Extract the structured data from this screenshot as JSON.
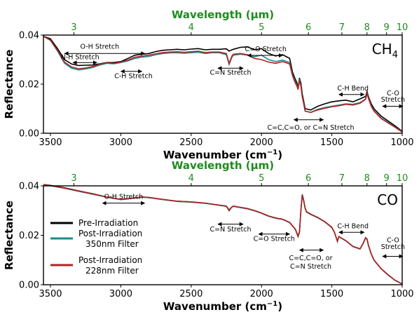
{
  "colors": {
    "pre": "#000000",
    "post350": "#1b8a8f",
    "post228": "#b22222",
    "top_axis": "#1e8c1e"
  },
  "legend": {
    "entries": [
      {
        "series": "pre",
        "lines": [
          "Pre-Irradiation"
        ]
      },
      {
        "series": "post350",
        "lines": [
          "Post-Irradiation",
          "350nm Filter"
        ]
      },
      {
        "series": "post228",
        "lines": [
          "Post-Irradiation",
          "228nm Filter"
        ]
      }
    ]
  },
  "chart_data": [
    {
      "type": "line",
      "panel_label": "CH",
      "panel_label_sub": "4",
      "xlabel": "Wavenumber (cm",
      "xlabel_sup": "−1",
      "xlabel_end": ")",
      "ylabel": "Reflectance",
      "top_label": "Wavelength (µm)",
      "xlim": [
        3550,
        1000
      ],
      "ylim": [
        0,
        0.04
      ],
      "x_ticks": [
        3500,
        3000,
        2500,
        2000,
        1500,
        1000
      ],
      "y_ticks": [
        0.0,
        0.02,
        0.04
      ],
      "y_tick_labels": [
        "0.00",
        "0.02",
        "0.04"
      ],
      "top_ticks": [
        3,
        4,
        5,
        6,
        7,
        8,
        9,
        10
      ],
      "grid": false,
      "series": [
        {
          "key": "pre",
          "x": [
            3550,
            3500,
            3450,
            3400,
            3350,
            3300,
            3250,
            3200,
            3150,
            3100,
            3050,
            3000,
            2950,
            2900,
            2850,
            2800,
            2750,
            2700,
            2650,
            2600,
            2550,
            2500,
            2450,
            2400,
            2350,
            2300,
            2250,
            2230,
            2210,
            2200,
            2150,
            2100,
            2050,
            2000,
            1950,
            1900,
            1850,
            1800,
            1780,
            1760,
            1750,
            1740,
            1730,
            1720,
            1710,
            1700,
            1690,
            1650,
            1600,
            1550,
            1500,
            1450,
            1400,
            1350,
            1300,
            1260,
            1250,
            1240,
            1220,
            1200,
            1150,
            1100,
            1050,
            1000
          ],
          "y": [
            0.0395,
            0.0385,
            0.0345,
            0.03,
            0.0282,
            0.0276,
            0.0277,
            0.0278,
            0.0283,
            0.0288,
            0.0288,
            0.0292,
            0.0305,
            0.0318,
            0.0322,
            0.0325,
            0.0333,
            0.0338,
            0.034,
            0.0342,
            0.034,
            0.0343,
            0.0345,
            0.034,
            0.0342,
            0.0342,
            0.0344,
            0.0335,
            0.034,
            0.0342,
            0.035,
            0.0352,
            0.034,
            0.0345,
            0.0325,
            0.0315,
            0.032,
            0.0305,
            0.025,
            0.022,
            0.0208,
            0.0185,
            0.0225,
            0.0205,
            0.016,
            0.013,
            0.01,
            0.0095,
            0.011,
            0.012,
            0.0128,
            0.0132,
            0.0135,
            0.0128,
            0.014,
            0.015,
            0.017,
            0.015,
            0.012,
            0.01,
            0.007,
            0.005,
            0.003,
            0.0008
          ]
        },
        {
          "key": "post350",
          "x": [
            3550,
            3500,
            3450,
            3400,
            3350,
            3300,
            3250,
            3200,
            3150,
            3100,
            3050,
            3000,
            2950,
            2900,
            2850,
            2800,
            2750,
            2700,
            2650,
            2600,
            2550,
            2500,
            2450,
            2400,
            2350,
            2300,
            2250,
            2230,
            2210,
            2200,
            2150,
            2100,
            2050,
            2000,
            1950,
            1900,
            1850,
            1800,
            1780,
            1760,
            1750,
            1740,
            1730,
            1720,
            1710,
            1700,
            1690,
            1650,
            1600,
            1550,
            1500,
            1450,
            1400,
            1350,
            1300,
            1260,
            1250,
            1240,
            1220,
            1200,
            1150,
            1100,
            1050,
            1000
          ],
          "y": [
            0.0395,
            0.0378,
            0.0335,
            0.0285,
            0.0265,
            0.0258,
            0.0262,
            0.0268,
            0.0278,
            0.0285,
            0.0283,
            0.0288,
            0.0295,
            0.0305,
            0.031,
            0.0313,
            0.032,
            0.0325,
            0.0327,
            0.0328,
            0.0326,
            0.0328,
            0.033,
            0.0325,
            0.0328,
            0.0328,
            0.032,
            0.028,
            0.031,
            0.0318,
            0.0322,
            0.0318,
            0.0312,
            0.0318,
            0.03,
            0.0292,
            0.0298,
            0.0288,
            0.024,
            0.021,
            0.0198,
            0.018,
            0.022,
            0.0195,
            0.015,
            0.0122,
            0.009,
            0.0085,
            0.0098,
            0.0105,
            0.011,
            0.0115,
            0.012,
            0.0118,
            0.0125,
            0.014,
            0.0165,
            0.0145,
            0.0112,
            0.0092,
            0.0062,
            0.0044,
            0.0025,
            0.0006
          ]
        },
        {
          "key": "post228",
          "x": [
            3550,
            3500,
            3450,
            3400,
            3350,
            3300,
            3250,
            3200,
            3150,
            3100,
            3050,
            3000,
            2950,
            2900,
            2850,
            2800,
            2750,
            2700,
            2650,
            2600,
            2550,
            2500,
            2450,
            2400,
            2350,
            2300,
            2250,
            2230,
            2210,
            2200,
            2150,
            2100,
            2050,
            2000,
            1950,
            1900,
            1850,
            1800,
            1780,
            1760,
            1750,
            1740,
            1730,
            1720,
            1710,
            1700,
            1690,
            1650,
            1600,
            1550,
            1500,
            1450,
            1400,
            1350,
            1300,
            1260,
            1250,
            1240,
            1220,
            1200,
            1150,
            1100,
            1050,
            1000
          ],
          "y": [
            0.0395,
            0.038,
            0.0338,
            0.029,
            0.027,
            0.0263,
            0.0266,
            0.0272,
            0.0281,
            0.0287,
            0.0285,
            0.029,
            0.0298,
            0.031,
            0.0314,
            0.0318,
            0.0324,
            0.0329,
            0.0331,
            0.0332,
            0.033,
            0.0332,
            0.0334,
            0.0329,
            0.0331,
            0.0331,
            0.0325,
            0.0285,
            0.0315,
            0.0322,
            0.0325,
            0.032,
            0.0305,
            0.03,
            0.029,
            0.0285,
            0.0292,
            0.0282,
            0.0235,
            0.0205,
            0.0195,
            0.0178,
            0.0215,
            0.0192,
            0.0148,
            0.012,
            0.009,
            0.0085,
            0.0095,
            0.0102,
            0.0108,
            0.0112,
            0.0118,
            0.0115,
            0.0122,
            0.0138,
            0.0162,
            0.0142,
            0.011,
            0.009,
            0.006,
            0.0042,
            0.0024,
            0.0005
          ]
        }
      ],
      "annotations": [
        {
          "text": "O-H Stretch",
          "x1": 3400,
          "x2": 2830,
          "y": 0.0327,
          "arrow_y": 0.0325,
          "tx": 3150,
          "ty": 0.0345
        },
        {
          "text": "N-H Stretch",
          "x1": 3340,
          "x2": 3170,
          "y": 0.0288,
          "arrow_y": 0.0288,
          "tx": 3290,
          "ty": 0.0302
        },
        {
          "text": "C-H Stretch",
          "x1": 3000,
          "x2": 2850,
          "y": 0.0252,
          "arrow_y": 0.0252,
          "tx": 2910,
          "ty": 0.0225
        },
        {
          "text": "C=N Stretch",
          "x1": 2310,
          "x2": 2130,
          "y": 0.0265,
          "arrow_y": 0.0265,
          "tx": 2220,
          "ty": 0.0238
        },
        {
          "text": "C=O Stretch",
          "x1": 2100,
          "x2": 1850,
          "y": 0.0317,
          "arrow_y": 0.0317,
          "tx": 1970,
          "ty": 0.0335
        },
        {
          "text": "C-H Bend",
          "x1": 1450,
          "x2": 1270,
          "y": 0.0158,
          "arrow_y": 0.0158,
          "tx": 1350,
          "ty": 0.0175
        },
        {
          "text": "C-O",
          "x1": 1140,
          "x2": 995,
          "y": 0.011,
          "arrow_y": 0.011,
          "tx": 1065,
          "ty": 0.0155
        },
        {
          "text": "Stretch",
          "x1": null,
          "x2": null,
          "y": null,
          "arrow_y": null,
          "tx": 1065,
          "ty": 0.0128
        },
        {
          "text": "C=C,C=O, or C=N Stretch",
          "x1": 1770,
          "x2": 1560,
          "y": 0.0055,
          "arrow_y": 0.0055,
          "tx": 1650,
          "ty": 0.0015
        }
      ]
    },
    {
      "type": "line",
      "panel_label": "CO",
      "panel_label_sub": "",
      "xlabel": "Wavenumber (cm",
      "xlabel_sup": "−1",
      "xlabel_end": ")",
      "ylabel": "Reflectance",
      "top_label": "Wavelength (µm)",
      "xlim": [
        3550,
        1000
      ],
      "ylim": [
        0,
        0.04
      ],
      "x_ticks": [
        3500,
        3000,
        2500,
        2000,
        1500,
        1000
      ],
      "y_ticks": [
        0.0,
        0.02,
        0.04
      ],
      "y_tick_labels": [
        "0.00",
        "0.02",
        "0.04"
      ],
      "top_ticks": [
        3,
        4,
        5,
        6,
        7,
        8,
        9,
        10
      ],
      "grid": false,
      "series": [
        {
          "key": "pre",
          "x": [
            3550,
            3500,
            3400,
            3300,
            3200,
            3100,
            3000,
            2950,
            2900,
            2850,
            2800,
            2700,
            2600,
            2500,
            2400,
            2300,
            2250,
            2230,
            2210,
            2200,
            2100,
            2050,
            2000,
            1950,
            1900,
            1850,
            1800,
            1760,
            1740,
            1730,
            1720,
            1710,
            1700,
            1690,
            1680,
            1650,
            1600,
            1550,
            1500,
            1480,
            1460,
            1450,
            1400,
            1350,
            1300,
            1280,
            1260,
            1250,
            1240,
            1220,
            1200,
            1150,
            1100,
            1050,
            1000
          ],
          "y": [
            0.0405,
            0.0402,
            0.0392,
            0.038,
            0.0368,
            0.0355,
            0.0345,
            0.0348,
            0.0352,
            0.0355,
            0.0353,
            0.0345,
            0.0338,
            0.0335,
            0.033,
            0.0322,
            0.0318,
            0.03,
            0.0315,
            0.0318,
            0.0308,
            0.03,
            0.029,
            0.0278,
            0.027,
            0.0265,
            0.0252,
            0.0225,
            0.0195,
            0.0212,
            0.03,
            0.0365,
            0.034,
            0.031,
            0.0295,
            0.0285,
            0.0272,
            0.0255,
            0.0232,
            0.021,
            0.0175,
            0.0195,
            0.0178,
            0.0155,
            0.0145,
            0.0165,
            0.019,
            0.0185,
            0.016,
            0.0125,
            0.01,
            0.0065,
            0.004,
            0.0018,
            0.0003
          ]
        },
        {
          "key": "post350",
          "x": [
            3550,
            3500,
            3400,
            3300,
            3200,
            3100,
            3000,
            2950,
            2900,
            2850,
            2800,
            2700,
            2600,
            2500,
            2400,
            2300,
            2250,
            2230,
            2210,
            2200,
            2100,
            2050,
            2000,
            1950,
            1900,
            1850,
            1800,
            1760,
            1740,
            1730,
            1720,
            1710,
            1700,
            1690,
            1680,
            1650,
            1600,
            1550,
            1500,
            1480,
            1460,
            1450,
            1400,
            1350,
            1300,
            1280,
            1260,
            1250,
            1240,
            1220,
            1200,
            1150,
            1100,
            1050,
            1000
          ],
          "y": [
            0.0403,
            0.04,
            0.039,
            0.0378,
            0.0366,
            0.0354,
            0.0344,
            0.0347,
            0.0351,
            0.0354,
            0.0352,
            0.0344,
            0.0337,
            0.0334,
            0.0329,
            0.0321,
            0.0317,
            0.0302,
            0.0314,
            0.0317,
            0.0307,
            0.0299,
            0.0289,
            0.0277,
            0.0269,
            0.0264,
            0.0251,
            0.0224,
            0.0197,
            0.0214,
            0.0298,
            0.0362,
            0.0338,
            0.0308,
            0.0294,
            0.0284,
            0.0271,
            0.0254,
            0.0231,
            0.0209,
            0.0176,
            0.0194,
            0.0177,
            0.0154,
            0.0144,
            0.0164,
            0.0188,
            0.0184,
            0.0159,
            0.0124,
            0.0099,
            0.0064,
            0.0039,
            0.0017,
            0.0003
          ]
        },
        {
          "key": "post228",
          "x": [
            3550,
            3500,
            3400,
            3300,
            3200,
            3100,
            3000,
            2950,
            2900,
            2850,
            2800,
            2700,
            2600,
            2500,
            2400,
            2300,
            2250,
            2230,
            2210,
            2200,
            2100,
            2050,
            2000,
            1950,
            1900,
            1850,
            1800,
            1760,
            1740,
            1730,
            1720,
            1710,
            1700,
            1690,
            1680,
            1650,
            1600,
            1550,
            1500,
            1480,
            1460,
            1450,
            1400,
            1350,
            1300,
            1280,
            1260,
            1250,
            1240,
            1220,
            1200,
            1150,
            1100,
            1050,
            1000
          ],
          "y": [
            0.0404,
            0.0401,
            0.0391,
            0.0379,
            0.0367,
            0.0355,
            0.0345,
            0.0348,
            0.0352,
            0.0355,
            0.0353,
            0.0345,
            0.0338,
            0.0335,
            0.033,
            0.0322,
            0.0318,
            0.0303,
            0.0315,
            0.0318,
            0.0308,
            0.03,
            0.029,
            0.0278,
            0.027,
            0.0265,
            0.0252,
            0.0225,
            0.0198,
            0.0215,
            0.03,
            0.0364,
            0.0339,
            0.0309,
            0.0295,
            0.0285,
            0.0272,
            0.0255,
            0.0232,
            0.021,
            0.0177,
            0.0195,
            0.0178,
            0.0155,
            0.0145,
            0.0165,
            0.0189,
            0.0185,
            0.016,
            0.0125,
            0.01,
            0.0065,
            0.004,
            0.0018,
            0.0003
          ]
        }
      ],
      "annotations": [
        {
          "text": "O-H Stretch",
          "x1": 3130,
          "x2": 2830,
          "y": 0.033,
          "arrow_y": 0.033,
          "tx": 2980,
          "ty": 0.0348
        },
        {
          "text": "C=N Stretch",
          "x1": 2310,
          "x2": 2130,
          "y": 0.0245,
          "arrow_y": 0.0245,
          "tx": 2220,
          "ty": 0.0215
        },
        {
          "text": "C=O Stretch",
          "x1": 2020,
          "x2": 1800,
          "y": 0.0205,
          "arrow_y": 0.0205,
          "tx": 1910,
          "ty": 0.0178
        },
        {
          "text": "C-H Bend",
          "x1": 1450,
          "x2": 1270,
          "y": 0.0212,
          "arrow_y": 0.0212,
          "tx": 1350,
          "ty": 0.0228
        },
        {
          "text": "C-O",
          "x1": 1140,
          "x2": 995,
          "y": 0.0115,
          "arrow_y": 0.0115,
          "tx": 1065,
          "ty": 0.0172
        },
        {
          "text": "Stretch",
          "x1": null,
          "x2": null,
          "y": null,
          "arrow_y": null,
          "tx": 1065,
          "ty": 0.0145
        },
        {
          "text": "C=C,C=O, or",
          "x1": null,
          "x2": null,
          "y": null,
          "arrow_y": null,
          "tx": 1650,
          "ty": 0.01
        },
        {
          "text": "C=N Stretch",
          "x1": 1730,
          "x2": 1560,
          "y": 0.014,
          "arrow_y": 0.014,
          "tx": 1650,
          "ty": 0.0065
        }
      ]
    }
  ]
}
